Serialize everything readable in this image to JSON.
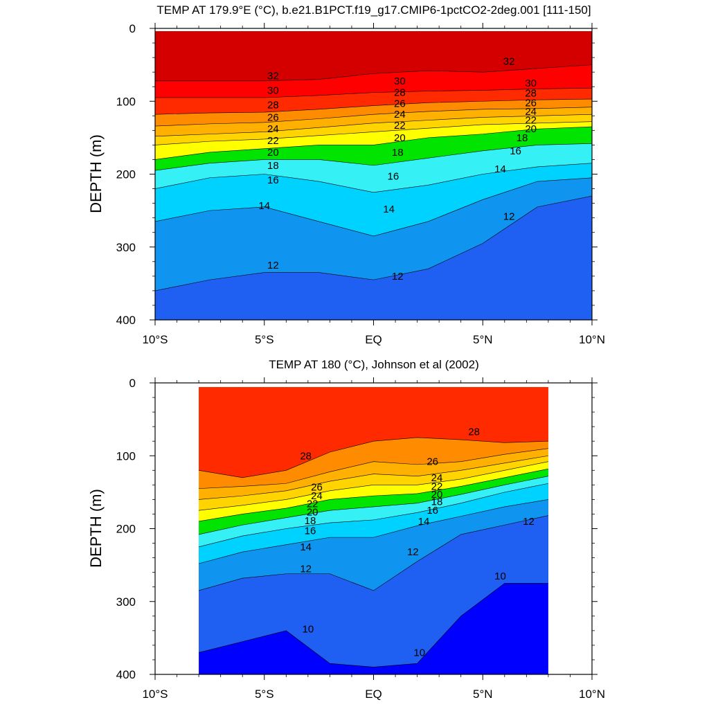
{
  "chart_data": [
    {
      "type": "contour",
      "title": "TEMP AT 179.9°E (°C), b.e21.B1PCT.f19_g17.CMIP6-1pctCO2-2deg.001 [111-150]",
      "ylabel": "DEPTH (m)",
      "xlabel": "",
      "xlim": [
        -10,
        10
      ],
      "ylim": [
        400,
        0
      ],
      "x_ticks": [
        -10,
        -5,
        0,
        5,
        10
      ],
      "x_tick_labels": [
        "10°S",
        "5°S",
        "EQ",
        "5°N",
        "10°N"
      ],
      "y_ticks": [
        0,
        100,
        200,
        300,
        400
      ],
      "y_tick_labels": [
        "0",
        "100",
        "200",
        "300",
        "400"
      ],
      "data_extent_x": [
        -10,
        10
      ],
      "data_extent_y": [
        5,
        400
      ],
      "levels": [
        12,
        14,
        16,
        18,
        20,
        22,
        24,
        26,
        28,
        30,
        32
      ],
      "contours": [
        {
          "level": 12,
          "lat": [
            -10,
            -7.5,
            -5,
            -2.5,
            0,
            2.5,
            5,
            7.5,
            10
          ],
          "depth": [
            360,
            345,
            335,
            335,
            345,
            330,
            295,
            245,
            230
          ]
        },
        {
          "level": 14,
          "lat": [
            -10,
            -7.5,
            -5,
            -2.5,
            0,
            2.5,
            5,
            7.5,
            10
          ],
          "depth": [
            265,
            250,
            245,
            265,
            285,
            265,
            235,
            210,
            205
          ]
        },
        {
          "level": 16,
          "lat": [
            -10,
            -7.5,
            -5,
            -2.5,
            0,
            2.5,
            5,
            7.5,
            10
          ],
          "depth": [
            220,
            205,
            200,
            210,
            225,
            215,
            200,
            190,
            185
          ]
        },
        {
          "level": 18,
          "lat": [
            -10,
            -7.5,
            -5,
            -2.5,
            0,
            2.5,
            5,
            7.5,
            10
          ],
          "depth": [
            195,
            185,
            180,
            180,
            188,
            178,
            168,
            160,
            158
          ]
        },
        {
          "level": 20,
          "lat": [
            -10,
            -7.5,
            -5,
            -2.5,
            0,
            2.5,
            5,
            7.5,
            10
          ],
          "depth": [
            180,
            170,
            165,
            160,
            160,
            150,
            145,
            138,
            135
          ]
        },
        {
          "level": 22,
          "lat": [
            -10,
            -7.5,
            -5,
            -2.5,
            0,
            2.5,
            5,
            7.5,
            10
          ],
          "depth": [
            160,
            155,
            152,
            147,
            142,
            137,
            132,
            130,
            128
          ]
        },
        {
          "level": 24,
          "lat": [
            -10,
            -7.5,
            -5,
            -2.5,
            0,
            2.5,
            5,
            7.5,
            10
          ],
          "depth": [
            148,
            145,
            142,
            136,
            130,
            126,
            122,
            120,
            118
          ]
        },
        {
          "level": 26,
          "lat": [
            -10,
            -7.5,
            -5,
            -2.5,
            0,
            2.5,
            5,
            7.5,
            10
          ],
          "depth": [
            134,
            131,
            129,
            124,
            118,
            114,
            111,
            110,
            108
          ]
        },
        {
          "level": 28,
          "lat": [
            -10,
            -7.5,
            -5,
            -2.5,
            0,
            2.5,
            5,
            7.5,
            10
          ],
          "depth": [
            118,
            116,
            115,
            111,
            106,
            102,
            100,
            98,
            97
          ]
        },
        {
          "level": 30,
          "lat": [
            -10,
            -7.5,
            -5,
            -2.5,
            0,
            2.5,
            5,
            7.5,
            10
          ],
          "depth": [
            95,
            95,
            95,
            92,
            88,
            86,
            85,
            83,
            82
          ]
        },
        {
          "level": 32,
          "lat": [
            -10,
            -7.5,
            -5,
            -2.5,
            0,
            2.5,
            5,
            7.5,
            10
          ],
          "depth": [
            72,
            72,
            72,
            70,
            62,
            58,
            60,
            55,
            50
          ]
        }
      ],
      "contour_labels": [
        {
          "text": "32",
          "lat": -4.6,
          "depth": 65
        },
        {
          "text": "30",
          "lat": -4.6,
          "depth": 85
        },
        {
          "text": "28",
          "lat": -4.6,
          "depth": 105
        },
        {
          "text": "26",
          "lat": -4.6,
          "depth": 122
        },
        {
          "text": "24",
          "lat": -4.6,
          "depth": 138
        },
        {
          "text": "22",
          "lat": -4.6,
          "depth": 154
        },
        {
          "text": "20",
          "lat": -4.6,
          "depth": 170
        },
        {
          "text": "18",
          "lat": -4.6,
          "depth": 188
        },
        {
          "text": "16",
          "lat": -4.6,
          "depth": 208
        },
        {
          "text": "14",
          "lat": -5.0,
          "depth": 243
        },
        {
          "text": "12",
          "lat": -4.6,
          "depth": 325
        },
        {
          "text": "30",
          "lat": 1.2,
          "depth": 72
        },
        {
          "text": "28",
          "lat": 1.2,
          "depth": 88
        },
        {
          "text": "26",
          "lat": 1.2,
          "depth": 103
        },
        {
          "text": "24",
          "lat": 1.2,
          "depth": 118
        },
        {
          "text": "22",
          "lat": 1.2,
          "depth": 133
        },
        {
          "text": "20",
          "lat": 1.2,
          "depth": 150
        },
        {
          "text": "18",
          "lat": 1.1,
          "depth": 170
        },
        {
          "text": "16",
          "lat": 0.9,
          "depth": 203
        },
        {
          "text": "14",
          "lat": 0.7,
          "depth": 248
        },
        {
          "text": "12",
          "lat": 1.1,
          "depth": 340
        },
        {
          "text": "32",
          "lat": 6.2,
          "depth": 45
        },
        {
          "text": "30",
          "lat": 7.2,
          "depth": 75
        },
        {
          "text": "28",
          "lat": 7.2,
          "depth": 89
        },
        {
          "text": "26",
          "lat": 7.2,
          "depth": 102
        },
        {
          "text": "24",
          "lat": 7.2,
          "depth": 114
        },
        {
          "text": "22",
          "lat": 7.2,
          "depth": 126
        },
        {
          "text": "20",
          "lat": 7.2,
          "depth": 138
        },
        {
          "text": "18",
          "lat": 6.8,
          "depth": 150
        },
        {
          "text": "16",
          "lat": 6.5,
          "depth": 168
        },
        {
          "text": "14",
          "lat": 5.8,
          "depth": 193
        },
        {
          "text": "12",
          "lat": 6.2,
          "depth": 258
        }
      ]
    },
    {
      "type": "contour",
      "title": "TEMP AT 180 (°C), Johnson et al (2002)",
      "ylabel": "DEPTH (m)",
      "xlabel": "",
      "xlim": [
        -10,
        10
      ],
      "ylim": [
        400,
        0
      ],
      "x_ticks": [
        -10,
        -5,
        0,
        5,
        10
      ],
      "x_tick_labels": [
        "10°S",
        "5°S",
        "EQ",
        "5°N",
        "10°N"
      ],
      "y_ticks": [
        0,
        100,
        200,
        300,
        400
      ],
      "y_tick_labels": [
        "0",
        "100",
        "200",
        "300",
        "400"
      ],
      "data_extent_x": [
        -8,
        8
      ],
      "data_extent_y": [
        5,
        400
      ],
      "levels": [
        10,
        12,
        14,
        16,
        18,
        20,
        22,
        24,
        26,
        28
      ],
      "contours": [
        {
          "level": 10,
          "lat": [
            -8,
            -6,
            -4,
            -2,
            0,
            2,
            4,
            6,
            8
          ],
          "depth": [
            370,
            355,
            340,
            385,
            390,
            385,
            320,
            275,
            275
          ]
        },
        {
          "level": 12,
          "lat": [
            -8,
            -6,
            -4,
            -2,
            0,
            2,
            4,
            6,
            8
          ],
          "depth": [
            285,
            268,
            262,
            262,
            285,
            245,
            208,
            195,
            182
          ]
        },
        {
          "level": 14,
          "lat": [
            -8,
            -6,
            -4,
            -2,
            0,
            2,
            4,
            6,
            8
          ],
          "depth": [
            248,
            232,
            222,
            212,
            212,
            196,
            183,
            170,
            160
          ]
        },
        {
          "level": 16,
          "lat": [
            -8,
            -6,
            -4,
            -2,
            0,
            2,
            4,
            6,
            8
          ],
          "depth": [
            225,
            210,
            200,
            192,
            188,
            178,
            165,
            150,
            138
          ]
        },
        {
          "level": 18,
          "lat": [
            -8,
            -6,
            -4,
            -2,
            0,
            2,
            4,
            6,
            8
          ],
          "depth": [
            208,
            195,
            185,
            175,
            170,
            165,
            153,
            140,
            128
          ]
        },
        {
          "level": 20,
          "lat": [
            -8,
            -6,
            -4,
            -2,
            0,
            2,
            4,
            6,
            8
          ],
          "depth": [
            190,
            180,
            172,
            160,
            155,
            152,
            142,
            130,
            118
          ]
        },
        {
          "level": 22,
          "lat": [
            -8,
            -6,
            -4,
            -2,
            0,
            2,
            4,
            6,
            8
          ],
          "depth": [
            175,
            168,
            160,
            148,
            140,
            140,
            132,
            120,
            108
          ]
        },
        {
          "level": 24,
          "lat": [
            -8,
            -6,
            -4,
            -2,
            0,
            2,
            4,
            6,
            8
          ],
          "depth": [
            160,
            155,
            148,
            135,
            125,
            128,
            120,
            110,
            100
          ]
        },
        {
          "level": 26,
          "lat": [
            -8,
            -6,
            -4,
            -2,
            0,
            2,
            4,
            6,
            8
          ],
          "depth": [
            145,
            142,
            138,
            122,
            108,
            112,
            108,
            98,
            90
          ]
        },
        {
          "level": 28,
          "lat": [
            -8,
            -6,
            -4,
            -2,
            0,
            2,
            4,
            6,
            8
          ],
          "depth": [
            120,
            130,
            120,
            95,
            80,
            75,
            78,
            82,
            80
          ]
        }
      ],
      "contour_labels": [
        {
          "text": "28",
          "lat": -3.1,
          "depth": 100
        },
        {
          "text": "26",
          "lat": -2.6,
          "depth": 143
        },
        {
          "text": "24",
          "lat": -2.6,
          "depth": 155
        },
        {
          "text": "22",
          "lat": -2.8,
          "depth": 166
        },
        {
          "text": "20",
          "lat": -2.8,
          "depth": 177
        },
        {
          "text": "18",
          "lat": -2.9,
          "depth": 189
        },
        {
          "text": "16",
          "lat": -2.9,
          "depth": 203
        },
        {
          "text": "14",
          "lat": -3.1,
          "depth": 225
        },
        {
          "text": "12",
          "lat": -3.1,
          "depth": 255
        },
        {
          "text": "10",
          "lat": -3.0,
          "depth": 338
        },
        {
          "text": "28",
          "lat": 4.6,
          "depth": 67
        },
        {
          "text": "26",
          "lat": 2.7,
          "depth": 108
        },
        {
          "text": "24",
          "lat": 2.9,
          "depth": 130
        },
        {
          "text": "22",
          "lat": 2.9,
          "depth": 142
        },
        {
          "text": "20",
          "lat": 2.9,
          "depth": 153
        },
        {
          "text": "18",
          "lat": 2.9,
          "depth": 163
        },
        {
          "text": "16",
          "lat": 2.7,
          "depth": 175
        },
        {
          "text": "14",
          "lat": 2.3,
          "depth": 190
        },
        {
          "text": "12",
          "lat": 1.8,
          "depth": 232
        },
        {
          "text": "10",
          "lat": 2.1,
          "depth": 370
        },
        {
          "text": "10",
          "lat": 5.8,
          "depth": 265
        },
        {
          "text": "12",
          "lat": 7.1,
          "depth": 190
        }
      ]
    }
  ]
}
